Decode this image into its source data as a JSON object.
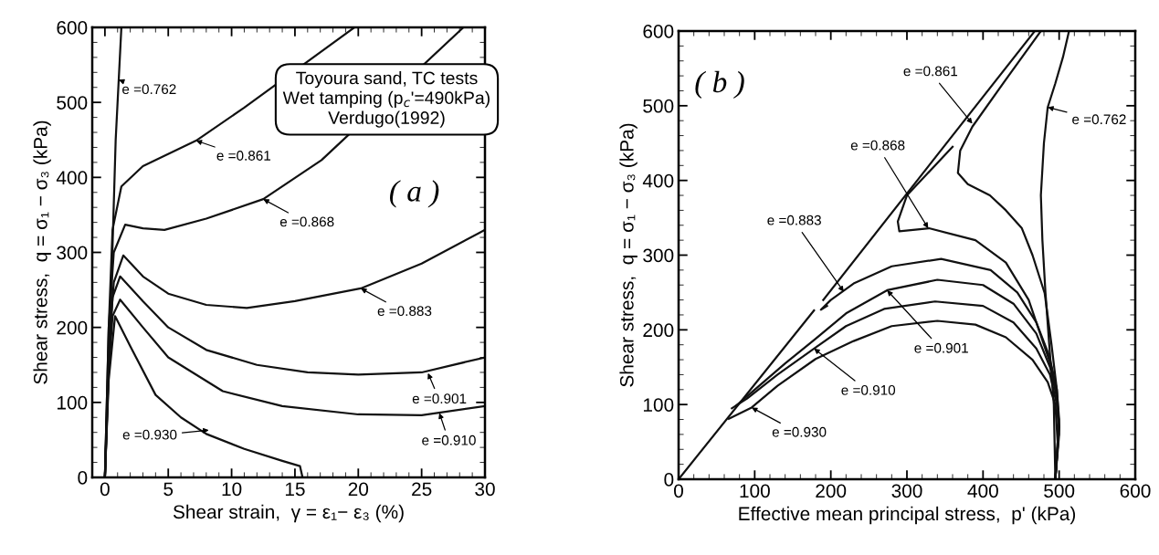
{
  "chart_data": [
    {
      "type": "line",
      "xlabel": "Shear strain,  γ = ε₁− ε₃ (%)",
      "ylabel": "Shear stress,  q = σ₁ − σ₃ (kPa)",
      "xlim": [
        -1,
        30
      ],
      "xticks": [
        0,
        5,
        10,
        15,
        20,
        25,
        30
      ],
      "ylim": [
        0,
        600
      ],
      "yticks": [
        0,
        100,
        200,
        300,
        400,
        500,
        600
      ],
      "grid": false,
      "legend": false,
      "series": [
        {
          "color": "#111111",
          "x": [
            0,
            0.5,
            0.85,
            1.3
          ],
          "values": [
            0,
            250,
            450,
            600
          ]
        },
        {
          "color": "#111111",
          "x": [
            0,
            0.3,
            0.6,
            1.3,
            3,
            7.2,
            11,
            19.7
          ],
          "values": [
            0,
            200,
            330,
            388,
            415,
            449,
            493,
            600
          ]
        },
        {
          "color": "#111111",
          "x": [
            0,
            0.3,
            0.7,
            1.6,
            3,
            4.7,
            8,
            12.5,
            17.1,
            28.3
          ],
          "values": [
            0,
            200,
            300,
            337,
            332,
            330,
            345,
            371,
            423,
            600
          ]
        },
        {
          "color": "#111111",
          "x": [
            0,
            0.3,
            0.7,
            1.45,
            3,
            5,
            8,
            11.2,
            15,
            20.2,
            25,
            30
          ],
          "values": [
            0,
            170,
            260,
            296,
            268,
            245,
            230,
            226,
            235,
            252,
            285,
            330
          ]
        },
        {
          "color": "#111111",
          "x": [
            0,
            0.3,
            0.6,
            1.2,
            3,
            5,
            8,
            12,
            16,
            20,
            25,
            30
          ],
          "values": [
            0,
            150,
            240,
            268,
            235,
            200,
            170,
            150,
            140,
            137,
            140,
            160
          ]
        },
        {
          "color": "#111111",
          "x": [
            0,
            0.3,
            0.6,
            1.2,
            3,
            5,
            9.3,
            14,
            20,
            25,
            30
          ],
          "values": [
            0,
            140,
            215,
            237,
            200,
            160,
            115,
            95,
            84,
            83,
            95
          ]
        },
        {
          "color": "#111111",
          "x": [
            0,
            0.3,
            0.8,
            2,
            4,
            6,
            8,
            11,
            14,
            15.4,
            15.6
          ],
          "values": [
            0,
            130,
            215,
            175,
            110,
            80,
            58,
            38,
            22,
            15,
            0
          ]
        }
      ],
      "annotations": [
        "Toyoura sand, TC tests\nWet tamping (p$_{c}$'=490kPa)\nVerdugo(1992)",
        "( a )",
        {
          "text": "e =0.762",
          "x": 1.09,
          "y": 530
        },
        {
          "text": "e =0.861",
          "x": 7.2,
          "y": 449
        },
        {
          "text": "e =0.868",
          "x": 12.5,
          "y": 371
        },
        {
          "text": "e =0.883",
          "x": 20.2,
          "y": 252
        },
        {
          "text": "e =0.901",
          "x": 25.5,
          "y": 139
        },
        {
          "text": "e =0.910",
          "x": 26.4,
          "y": 86
        },
        {
          "text": "e =0.930",
          "x": 8.2,
          "y": 63
        }
      ]
    },
    {
      "type": "line",
      "xlabel": "Effective mean principal stress,  p' (kPa)",
      "ylabel": "Shear stress,  q = σ₁ − σ₃ (kPa)",
      "xlim": [
        0,
        600
      ],
      "xticks": [
        0,
        100,
        200,
        300,
        400,
        500,
        600
      ],
      "ylim": [
        0,
        600
      ],
      "yticks": [
        0,
        100,
        200,
        300,
        400,
        500,
        600
      ],
      "grid": false,
      "legend": false,
      "series": [
        {
          "color": "#111111",
          "x": [
            0,
            178,
            180,
            190,
            468
          ],
          "values": [
            0,
            226,
            null,
            240,
            600
          ]
        },
        {
          "color": "#111111",
          "x": [
            495,
            493,
            487,
            482,
            478,
            476,
            480,
            485,
            495,
            505,
            513
          ],
          "values": [
            0,
            100,
            180,
            250,
            320,
            380,
            450,
            498,
            530,
            565,
            600
          ]
        },
        {
          "color": "#111111",
          "x": [
            495,
            500,
            497,
            490,
            481,
            465,
            451,
            430,
            409,
            380,
            367,
            370,
            386,
            430,
            476
          ],
          "values": [
            0,
            70,
            120,
            180,
            249,
            300,
            336,
            360,
            380,
            395,
            410,
            440,
            472,
            535,
            600
          ]
        },
        {
          "color": "#111111",
          "x": [
            495,
            500,
            497,
            490,
            480,
            460,
            430,
            390,
            329,
            290,
            288,
            300,
            360
          ],
          "values": [
            0,
            70,
            110,
            150,
            180,
            240,
            290,
            320,
            336,
            332,
            345,
            380,
            445
          ]
        },
        {
          "color": "#111111",
          "x": [
            495,
            500,
            497,
            487,
            470,
            445,
            410,
            345,
            280,
            230,
            200,
            187,
            195
          ],
          "values": [
            0,
            80,
            120,
            165,
            210,
            250,
            280,
            295,
            285,
            262,
            240,
            227,
            232
          ]
        },
        {
          "color": "#111111",
          "x": [
            495,
            500,
            497,
            488,
            470,
            440,
            400,
            340,
            274,
            220,
            180,
            140,
            100,
            75
          ],
          "values": [
            0,
            70,
            110,
            150,
            195,
            235,
            260,
            267,
            253,
            222,
            188,
            155,
            120,
            98
          ]
        },
        {
          "color": "#111111",
          "x": [
            495,
            500,
            497,
            488,
            470,
            440,
            400,
            337,
            270,
            220,
            178,
            130,
            90,
            70
          ],
          "values": [
            0,
            60,
            100,
            140,
            175,
            210,
            232,
            238,
            228,
            205,
            175,
            140,
            108,
            95
          ]
        },
        {
          "color": "#111111",
          "x": [
            495,
            498,
            495,
            485,
            465,
            430,
            390,
            340,
            280,
            230,
            180,
            130,
            96,
            66
          ],
          "values": [
            0,
            50,
            100,
            130,
            160,
            190,
            207,
            212,
            205,
            185,
            161,
            125,
            96,
            81
          ]
        }
      ],
      "annotations": [
        "( b )",
        {
          "text": "e =0.861",
          "x": 386,
          "y": 476
        },
        {
          "text": "e =0.868",
          "x": 328,
          "y": 336
        },
        {
          "text": "e =0.883",
          "x": 217,
          "y": 251
        },
        {
          "text": "e =0.901",
          "x": 274,
          "y": 253
        },
        {
          "text": "e =0.910",
          "x": 178,
          "y": 175
        },
        {
          "text": "e =0.930",
          "x": 96,
          "y": 96
        },
        {
          "text": "e =0.762",
          "x": 485,
          "y": 498
        }
      ]
    }
  ]
}
